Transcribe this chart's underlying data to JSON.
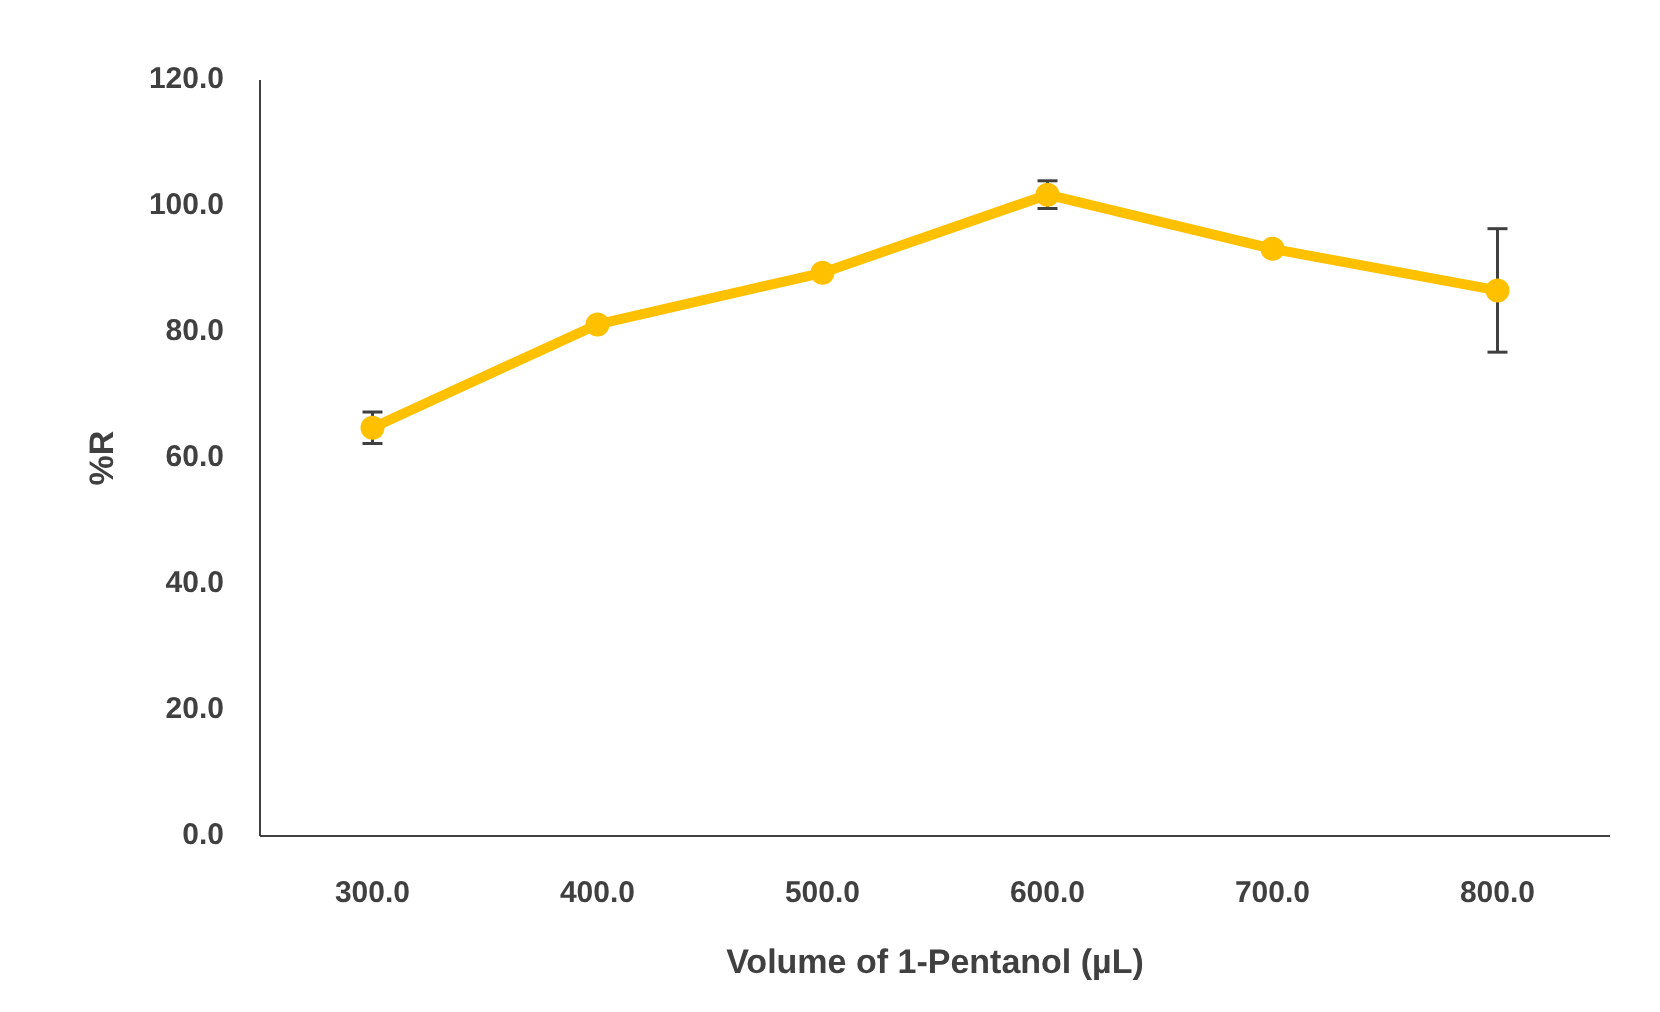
{
  "chart_data": {
    "type": "line",
    "xlabel": "Volume of 1-Pentanol (µL)",
    "ylabel": "%R",
    "categories": [
      "300.0",
      "400.0",
      "500.0",
      "600.0",
      "700.0",
      "800.0"
    ],
    "series": [
      {
        "color": "#ffc000",
        "values": [
          64.8,
          81.2,
          89.4,
          101.8,
          93.2,
          86.6
        ],
        "errors": [
          2.5,
          null,
          null,
          2.2,
          null,
          9.8
        ]
      }
    ],
    "ylim": [
      0,
      120
    ],
    "yticks": [
      {
        "value": 0,
        "label": "0.0"
      },
      {
        "value": 20,
        "label": "20.0"
      },
      {
        "value": 40,
        "label": "40.0"
      },
      {
        "value": 60,
        "label": "60.0"
      },
      {
        "value": 80,
        "label": "80.0"
      },
      {
        "value": 100,
        "label": "100.0"
      },
      {
        "value": 120,
        "label": "120.0"
      }
    ],
    "grid": false,
    "marker": "circle",
    "line_style": "solid"
  }
}
